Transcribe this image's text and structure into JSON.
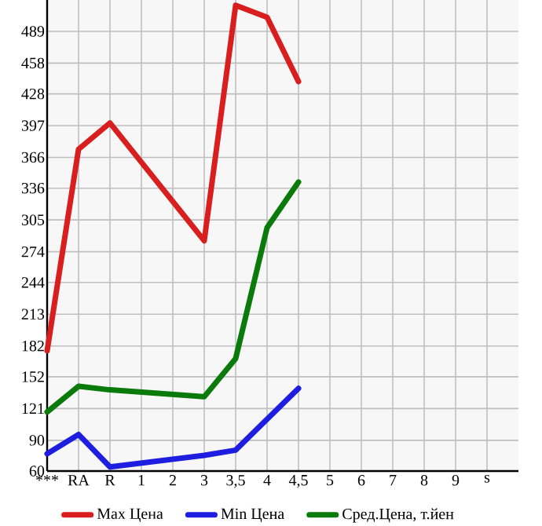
{
  "chart_data": {
    "type": "line",
    "categories": [
      "***",
      "RA",
      "R",
      "1",
      "2",
      "3",
      "3,5",
      "4",
      "4,5",
      "5",
      "6",
      "7",
      "8",
      "9",
      "s"
    ],
    "series": [
      {
        "name": "Max Цена",
        "color": "#d81e1e",
        "values": [
          177.5,
          374,
          399.6,
          null,
          null,
          284.7,
          514.5,
          502.7,
          440,
          null,
          null,
          null,
          null,
          null,
          null
        ]
      },
      {
        "name": "Min Цена",
        "color": "#1e1ee0",
        "values": [
          76.9,
          95.7,
          64,
          null,
          null,
          75.3,
          80.4,
          null,
          140.7,
          null,
          null,
          null,
          null,
          null,
          null
        ]
      },
      {
        "name": "Сред.Цена, т.йен",
        "color": "#0a7a0a",
        "values": [
          117.7,
          142.7,
          139.2,
          null,
          null,
          132.5,
          169.8,
          297.5,
          342,
          null,
          null,
          null,
          null,
          null,
          null
        ]
      }
    ],
    "ylim": [
      60,
      519.6
    ],
    "yticks": [
      60,
      90,
      121,
      152,
      182,
      213,
      244,
      274,
      305,
      336,
      366,
      397,
      428,
      458,
      489
    ],
    "grid": true,
    "legend": "bottom",
    "marker": "none",
    "line_style": "solid"
  }
}
